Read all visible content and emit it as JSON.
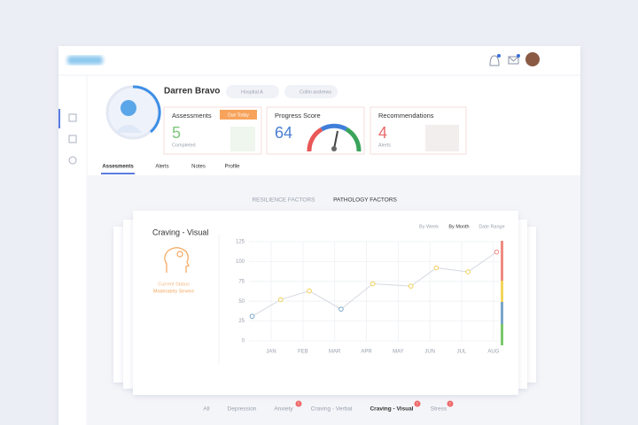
{
  "profile": {
    "name": "Darren Bravo",
    "location": "Hospital A",
    "clinician": "Collin andrews"
  },
  "cards": [
    {
      "title": "Assessments",
      "badge": "Due Today",
      "value": "5",
      "caption": "Completed"
    },
    {
      "title": "Progress Score",
      "value": "64"
    },
    {
      "title": "Recommendations",
      "value": "4",
      "caption": "Alerts"
    }
  ],
  "tabs": [
    "Assesments",
    "Alerts",
    "Notes",
    "Profile"
  ],
  "factor_tabs": [
    "RESILIENCE FACTORS",
    "PATHOLOGY FACTORS"
  ],
  "chart_panel": {
    "status_label": "Current Status",
    "status_value": "Moderately Severe",
    "ranges": [
      "By Week",
      "By Month",
      "Date Range"
    ]
  },
  "bottom_tabs": [
    {
      "label": "All"
    },
    {
      "label": "Depression"
    },
    {
      "label": "Anxiety",
      "alert": "!"
    },
    {
      "label": "Craving - Verbal"
    },
    {
      "label": "Craving - Visual",
      "alert": "!"
    },
    {
      "label": "Stress",
      "alert": "!"
    }
  ],
  "chart_data": {
    "type": "line",
    "title": "Craving - Visual",
    "x": [
      0.4,
      1.3,
      2.2,
      3.2,
      4.2,
      5.4,
      6.2,
      7.2,
      8.1
    ],
    "values": [
      31,
      52,
      63,
      40,
      72,
      69,
      92,
      87,
      112
    ],
    "point_colors": [
      "#7aa6c9",
      "#f2cf55",
      "#f2cf55",
      "#7aa6c9",
      "#f2cf55",
      "#f2cf55",
      "#f2cf55",
      "#f2cf55",
      "#ef8a80"
    ],
    "line_color": "#d5d9e2",
    "xlim": [
      0.3,
      8.2
    ],
    "xticks": [
      {
        "value": 1,
        "label": "JAN"
      },
      {
        "value": 2,
        "label": "FEB"
      },
      {
        "value": 3,
        "label": "MAR"
      },
      {
        "value": 4,
        "label": "APR"
      },
      {
        "value": 5,
        "label": "MAY"
      },
      {
        "value": 6,
        "label": "JUN"
      },
      {
        "value": 7,
        "label": "JUL"
      },
      {
        "value": 8,
        "label": "AUG"
      }
    ],
    "ylim": [
      0,
      125
    ],
    "yticks": [
      0,
      25,
      50,
      75,
      100,
      125
    ],
    "grid": true
  }
}
